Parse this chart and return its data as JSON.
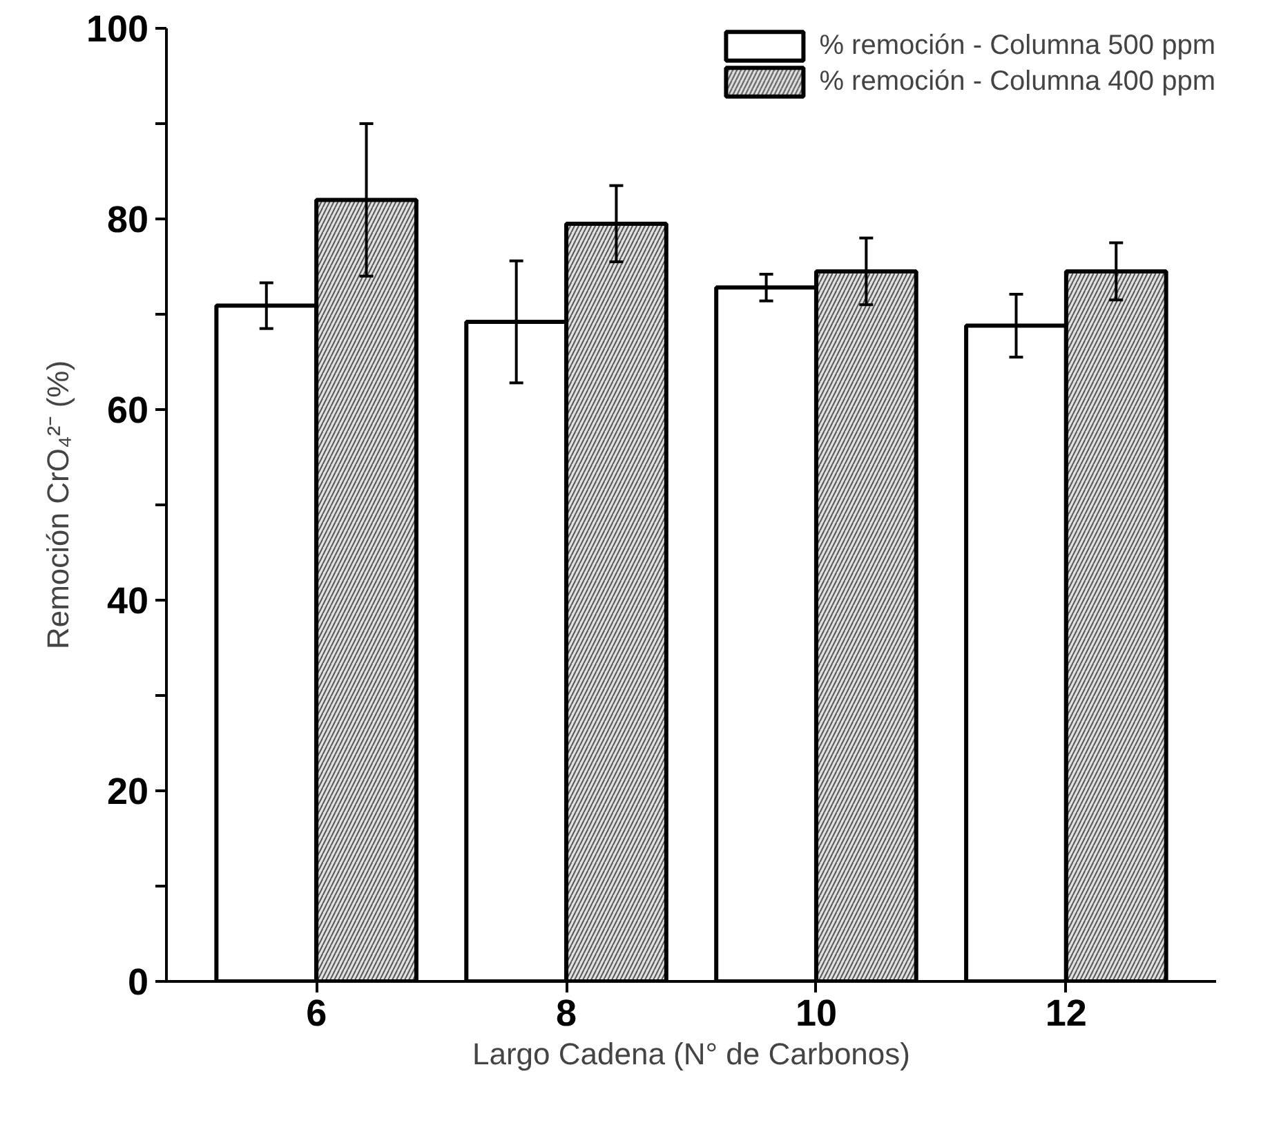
{
  "chart_data": {
    "type": "bar",
    "xlabel": "Largo Cadena (N° de Carbonos)",
    "ylabel": "Remoción CrO₄²⁻ (%)",
    "categories": [
      "6",
      "8",
      "10",
      "12"
    ],
    "series": [
      {
        "name": "% remoción - Columna 500 ppm",
        "color": "#ffffff",
        "values": [
          70.9,
          69.2,
          72.8,
          68.8
        ],
        "errors": [
          2.4,
          6.4,
          1.4,
          3.3
        ]
      },
      {
        "name": "% remoción - Columna 400 ppm",
        "color": "#e0e0e0",
        "values": [
          82.0,
          79.5,
          74.5,
          74.5
        ],
        "errors": [
          8.0,
          4.0,
          3.5,
          3.0
        ]
      }
    ],
    "ylim": [
      0,
      100
    ],
    "yticks": [
      0,
      {
        "value": 10,
        "label": null
      },
      20,
      {
        "value": 30,
        "label": null
      },
      40,
      {
        "value": 50,
        "label": null
      },
      60,
      {
        "value": 70,
        "label": null
      },
      80,
      {
        "value": 90,
        "label": null
      },
      100
    ],
    "grid": false,
    "legend": "top right"
  }
}
